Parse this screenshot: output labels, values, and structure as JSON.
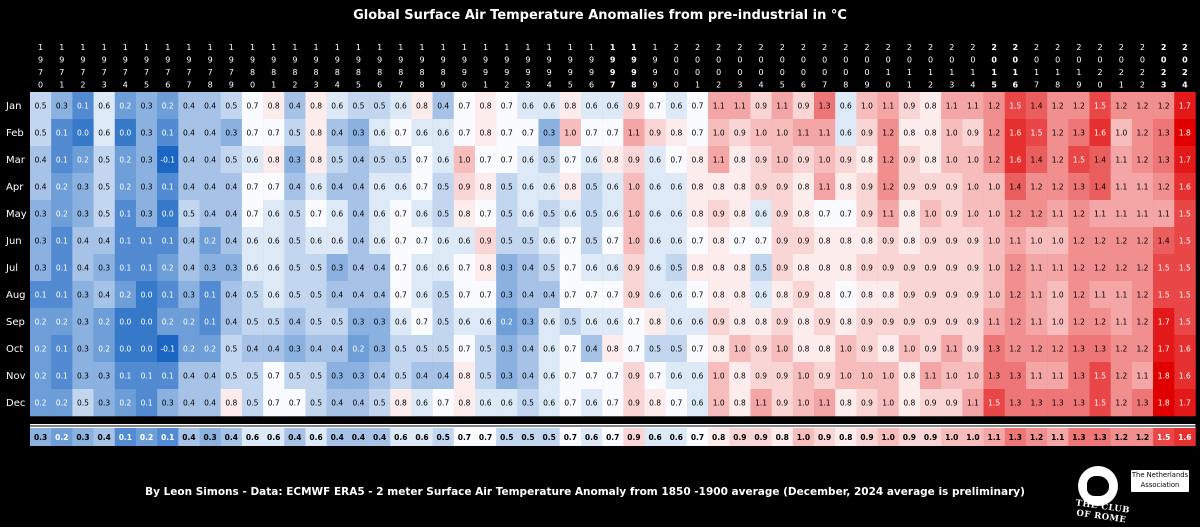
{
  "title": "Global Surface Air Temperature Anomalies from pre-industrial in °C",
  "footer": "By Leon Simons - Data: ECMWF ERA5 - 2 meter Surface Air Temperature Anomaly from 1850 -1900 average (December, 2024 average is preliminary)",
  "logo": {
    "text": "THE CLUB OF ROME",
    "box_line1": "The Netherlands",
    "box_line2": "Association"
  },
  "colors": {
    "cold": "#1a66c2",
    "neutral": "#ffffff",
    "warm": "#e00000",
    "background": "#000000"
  },
  "chart_data": {
    "type": "heatmap",
    "title": "Global Surface Air Temperature Anomalies from pre-industrial in °C",
    "months": [
      "Jan",
      "Feb",
      "Mar",
      "Apr",
      "May",
      "Jun",
      "Jul",
      "Aug",
      "Sep",
      "Oct",
      "Nov",
      "Dec"
    ],
    "years": [
      1970,
      1971,
      1972,
      1973,
      1974,
      1975,
      1976,
      1977,
      1978,
      1979,
      1980,
      1981,
      1982,
      1983,
      1984,
      1985,
      1986,
      1987,
      1988,
      1989,
      1990,
      1991,
      1992,
      1993,
      1994,
      1995,
      1996,
      1997,
      1998,
      1999,
      2000,
      2001,
      2002,
      2003,
      2004,
      2005,
      2006,
      2007,
      2008,
      2009,
      2010,
      2011,
      2012,
      2013,
      2014,
      2015,
      2016,
      2017,
      2018,
      2019,
      2020,
      2021,
      2022,
      2023,
      2024
    ],
    "bold_years": [
      1997,
      1998,
      2015,
      2016,
      2023,
      2024
    ],
    "unit": "°C",
    "color_range": [
      -0.1,
      1.8
    ],
    "rows": [
      [
        0.5,
        0.3,
        0.1,
        0.6,
        0.2,
        0.3,
        0.2,
        0.4,
        0.4,
        0.5,
        0.7,
        0.8,
        0.4,
        0.8,
        0.6,
        0.5,
        0.5,
        0.6,
        0.8,
        0.4,
        0.7,
        0.8,
        0.7,
        0.6,
        0.6,
        0.8,
        0.6,
        0.6,
        0.9,
        0.7,
        0.6,
        0.7,
        1.1,
        1.1,
        0.9,
        1.1,
        0.9,
        1.3,
        0.6,
        1.0,
        1.1,
        0.9,
        0.8,
        1.1,
        1.1,
        1.2,
        1.5,
        1.4,
        1.2,
        1.2,
        1.5,
        1.2,
        1.2,
        1.2,
        1.7
      ],
      [
        0.5,
        0.1,
        0.0,
        0.6,
        0.0,
        0.3,
        0.1,
        0.4,
        0.4,
        0.3,
        0.7,
        0.7,
        0.5,
        0.8,
        0.4,
        0.3,
        0.6,
        0.7,
        0.6,
        0.6,
        0.7,
        0.8,
        0.7,
        0.7,
        0.3,
        1.0,
        0.7,
        0.7,
        1.1,
        0.9,
        0.8,
        0.7,
        1.0,
        0.9,
        1.0,
        1.0,
        1.1,
        1.1,
        0.6,
        0.9,
        1.2,
        0.8,
        0.8,
        1.0,
        0.9,
        1.2,
        1.6,
        1.5,
        1.2,
        1.3,
        1.6,
        1.0,
        1.2,
        1.3,
        1.8
      ],
      [
        0.4,
        0.1,
        0.2,
        0.5,
        0.2,
        0.3,
        -0.1,
        0.4,
        0.4,
        0.5,
        0.6,
        0.8,
        0.3,
        0.8,
        0.5,
        0.4,
        0.5,
        0.5,
        0.7,
        0.6,
        1.0,
        0.7,
        0.7,
        0.6,
        0.5,
        0.7,
        0.6,
        0.8,
        0.9,
        0.6,
        0.7,
        0.8,
        1.1,
        0.8,
        0.9,
        1.0,
        0.9,
        1.0,
        0.9,
        0.8,
        1.2,
        0.9,
        0.8,
        1.0,
        1.0,
        1.2,
        1.6,
        1.4,
        1.2,
        1.5,
        1.4,
        1.1,
        1.2,
        1.3,
        1.7
      ],
      [
        0.4,
        0.2,
        0.3,
        0.5,
        0.2,
        0.3,
        0.1,
        0.4,
        0.4,
        0.4,
        0.7,
        0.7,
        0.4,
        0.6,
        0.4,
        0.4,
        0.6,
        0.6,
        0.7,
        0.5,
        0.9,
        0.8,
        0.5,
        0.6,
        0.6,
        0.8,
        0.5,
        0.6,
        1.0,
        0.6,
        0.6,
        0.8,
        0.8,
        0.8,
        0.9,
        0.9,
        0.8,
        1.1,
        0.8,
        0.9,
        1.2,
        0.9,
        0.9,
        0.9,
        1.0,
        1.0,
        1.4,
        1.2,
        1.2,
        1.3,
        1.4,
        1.1,
        1.1,
        1.2,
        1.6
      ],
      [
        0.3,
        0.2,
        0.3,
        0.5,
        0.1,
        0.3,
        0.0,
        0.5,
        0.4,
        0.4,
        0.7,
        0.6,
        0.5,
        0.7,
        0.6,
        0.4,
        0.6,
        0.7,
        0.6,
        0.5,
        0.8,
        0.7,
        0.5,
        0.6,
        0.5,
        0.6,
        0.5,
        0.6,
        1.0,
        0.6,
        0.6,
        0.8,
        0.9,
        0.8,
        0.6,
        0.9,
        0.8,
        0.7,
        0.7,
        0.9,
        1.1,
        0.8,
        1.0,
        0.9,
        1.0,
        1.0,
        1.2,
        1.2,
        1.1,
        1.2,
        1.1,
        1.1,
        1.1,
        1.1,
        1.5
      ],
      [
        0.3,
        0.1,
        0.4,
        0.4,
        0.1,
        0.1,
        0.1,
        0.4,
        0.2,
        0.4,
        0.6,
        0.6,
        0.5,
        0.6,
        0.6,
        0.4,
        0.6,
        0.7,
        0.7,
        0.6,
        0.6,
        0.9,
        0.5,
        0.5,
        0.6,
        0.7,
        0.5,
        0.7,
        1.0,
        0.6,
        0.6,
        0.7,
        0.8,
        0.7,
        0.7,
        0.9,
        0.9,
        0.8,
        0.8,
        0.8,
        0.9,
        0.8,
        0.9,
        0.9,
        0.9,
        1.0,
        1.1,
        1.0,
        1.0,
        1.2,
        1.2,
        1.2,
        1.2,
        1.4,
        1.5
      ],
      [
        0.3,
        0.1,
        0.4,
        0.3,
        0.1,
        0.1,
        0.2,
        0.4,
        0.3,
        0.3,
        0.6,
        0.6,
        0.5,
        0.5,
        0.3,
        0.4,
        0.4,
        0.7,
        0.6,
        0.6,
        0.7,
        0.8,
        0.3,
        0.4,
        0.5,
        0.7,
        0.6,
        0.6,
        0.9,
        0.6,
        0.5,
        0.8,
        0.8,
        0.8,
        0.5,
        0.9,
        0.8,
        0.8,
        0.8,
        0.9,
        0.9,
        0.9,
        0.9,
        0.9,
        0.9,
        1.0,
        1.2,
        1.1,
        1.1,
        1.2,
        1.2,
        1.2,
        1.2,
        1.5,
        1.5
      ],
      [
        0.1,
        0.1,
        0.3,
        0.4,
        0.2,
        0.0,
        0.1,
        0.3,
        0.1,
        0.4,
        0.5,
        0.6,
        0.5,
        0.5,
        0.4,
        0.4,
        0.4,
        0.7,
        0.6,
        0.5,
        0.7,
        0.7,
        0.3,
        0.4,
        0.4,
        0.7,
        0.7,
        0.7,
        0.9,
        0.6,
        0.6,
        0.7,
        0.8,
        0.8,
        0.6,
        0.8,
        0.9,
        0.8,
        0.7,
        0.8,
        0.8,
        0.9,
        0.9,
        0.9,
        0.9,
        1.0,
        1.2,
        1.1,
        1.0,
        1.2,
        1.1,
        1.1,
        1.2,
        1.5,
        1.5
      ],
      [
        0.2,
        0.2,
        0.3,
        0.2,
        0.0,
        0.0,
        0.2,
        0.2,
        0.1,
        0.4,
        0.5,
        0.5,
        0.4,
        0.5,
        0.5,
        0.3,
        0.3,
        0.6,
        0.7,
        0.5,
        0.6,
        0.6,
        0.2,
        0.3,
        0.6,
        0.5,
        0.6,
        0.6,
        0.7,
        0.8,
        0.6,
        0.6,
        0.9,
        0.8,
        0.8,
        0.9,
        0.8,
        0.9,
        0.8,
        0.9,
        0.9,
        0.9,
        0.9,
        0.9,
        0.9,
        1.1,
        1.2,
        1.1,
        1.0,
        1.2,
        1.2,
        1.1,
        1.2,
        1.7,
        1.5
      ],
      [
        0.2,
        0.1,
        0.3,
        0.2,
        0.0,
        0.0,
        -0.1,
        0.2,
        0.2,
        0.5,
        0.4,
        0.4,
        0.3,
        0.4,
        0.4,
        0.2,
        0.3,
        0.5,
        0.5,
        0.5,
        0.7,
        0.5,
        0.3,
        0.4,
        0.6,
        0.7,
        0.4,
        0.8,
        0.7,
        0.5,
        0.5,
        0.7,
        0.8,
        1.0,
        0.9,
        1.0,
        0.8,
        0.8,
        1.0,
        0.9,
        0.8,
        1.0,
        0.9,
        1.1,
        0.9,
        1.3,
        1.2,
        1.2,
        1.2,
        1.3,
        1.3,
        1.2,
        1.2,
        1.7,
        1.6
      ],
      [
        0.2,
        0.1,
        0.3,
        0.3,
        0.1,
        0.1,
        0.1,
        0.4,
        0.4,
        0.5,
        0.5,
        0.7,
        0.5,
        0.5,
        0.3,
        0.3,
        0.4,
        0.5,
        0.4,
        0.4,
        0.8,
        0.5,
        0.3,
        0.4,
        0.6,
        0.7,
        0.7,
        0.7,
        0.9,
        0.7,
        0.6,
        0.6,
        1.0,
        0.8,
        0.9,
        0.9,
        1.0,
        0.9,
        1.0,
        1.0,
        1.0,
        0.8,
        1.1,
        1.0,
        1.0,
        1.3,
        1.3,
        1.1,
        1.1,
        1.3,
        1.5,
        1.2,
        1.1,
        1.8,
        1.6
      ],
      [
        0.2,
        0.2,
        0.5,
        0.3,
        0.2,
        0.1,
        0.3,
        0.4,
        0.4,
        0.8,
        0.5,
        0.7,
        0.7,
        0.5,
        0.4,
        0.4,
        0.5,
        0.8,
        0.6,
        0.7,
        0.8,
        0.6,
        0.6,
        0.5,
        0.6,
        0.7,
        0.6,
        0.7,
        0.9,
        0.8,
        0.7,
        0.6,
        1.0,
        0.8,
        1.1,
        0.9,
        1.0,
        1.1,
        0.8,
        0.9,
        1.0,
        0.8,
        0.9,
        0.9,
        1.1,
        1.5,
        1.3,
        1.3,
        1.3,
        1.3,
        1.5,
        1.2,
        1.3,
        1.8,
        1.7
      ]
    ],
    "annual": [
      0.3,
      0.2,
      0.3,
      0.4,
      0.1,
      0.2,
      0.1,
      0.4,
      0.3,
      0.4,
      0.6,
      0.6,
      0.4,
      0.6,
      0.4,
      0.4,
      0.4,
      0.6,
      0.6,
      0.5,
      0.7,
      0.7,
      0.5,
      0.5,
      0.5,
      0.7,
      0.6,
      0.7,
      0.9,
      0.6,
      0.6,
      0.7,
      0.8,
      0.9,
      0.9,
      0.8,
      1.0,
      0.9,
      0.8,
      0.9,
      1.0,
      0.9,
      0.9,
      1.0,
      1.0,
      1.1,
      1.3,
      1.2,
      1.1,
      1.3,
      1.3,
      1.2,
      1.2,
      1.5,
      1.6
    ]
  }
}
